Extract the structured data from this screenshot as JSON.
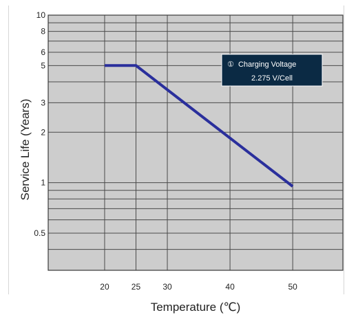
{
  "chart_data": {
    "type": "line",
    "xlabel": "Temperature (℃)",
    "ylabel": "Service Life (Years)",
    "x_ticks": [
      20,
      25,
      30,
      40,
      50
    ],
    "y_tick_labels": [
      {
        "value": 10,
        "label": "10"
      },
      {
        "value": 8,
        "label": "8"
      },
      {
        "value": 6,
        "label": "6"
      },
      {
        "value": 5,
        "label": "5"
      },
      {
        "value": 3,
        "label": "3"
      },
      {
        "value": 2,
        "label": "2"
      },
      {
        "value": 1,
        "label": "1"
      },
      {
        "value": 0.5,
        "label": "0.5"
      }
    ],
    "y_gridlines": [
      10,
      9,
      8,
      7,
      6,
      5,
      4,
      3,
      2,
      1,
      0.9,
      0.8,
      0.7,
      0.6,
      0.5,
      0.4,
      0.3
    ],
    "y_scale": "log",
    "xlim": [
      11,
      58
    ],
    "ylim": [
      0.3,
      10
    ],
    "grid": true,
    "series": [
      {
        "color": "#2a2f9c",
        "x": [
          20,
          25,
          50
        ],
        "y": [
          5,
          5,
          0.95
        ]
      }
    ],
    "annotation": {
      "symbol": "①",
      "line1": "Charging Voltage",
      "line2": "2.275 V/Cell"
    },
    "colors": {
      "plot_bg": "#cdcdcd",
      "grid": "#4a4a4a",
      "legend_bg": "#0b2a44",
      "line": "#2a2f9c"
    }
  }
}
